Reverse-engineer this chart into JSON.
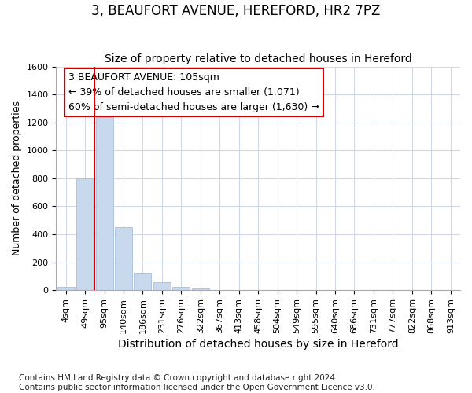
{
  "title": "3, BEAUFORT AVENUE, HEREFORD, HR2 7PZ",
  "subtitle": "Size of property relative to detached houses in Hereford",
  "xlabel": "Distribution of detached houses by size in Hereford",
  "ylabel": "Number of detached properties",
  "footnote": "Contains HM Land Registry data © Crown copyright and database right 2024.\nContains public sector information licensed under the Open Government Licence v3.0.",
  "bar_labels": [
    "4sqm",
    "49sqm",
    "95sqm",
    "140sqm",
    "186sqm",
    "231sqm",
    "276sqm",
    "322sqm",
    "367sqm",
    "413sqm",
    "458sqm",
    "504sqm",
    "549sqm",
    "595sqm",
    "640sqm",
    "686sqm",
    "731sqm",
    "777sqm",
    "822sqm",
    "868sqm",
    "913sqm"
  ],
  "bar_values": [
    25,
    800,
    1240,
    450,
    125,
    60,
    25,
    15,
    0,
    0,
    0,
    0,
    0,
    0,
    0,
    0,
    0,
    0,
    0,
    0,
    0
  ],
  "bar_color": "#c8d8ed",
  "bar_edge_color": "#a8bedd",
  "vline_x": 1.5,
  "vline_color": "#cc0000",
  "annotation_text": "3 BEAUFORT AVENUE: 105sqm\n← 39% of detached houses are smaller (1,071)\n60% of semi-detached houses are larger (1,630) →",
  "annotation_box_facecolor": "#ffffff",
  "annotation_box_edgecolor": "#cc0000",
  "ylim": [
    0,
    1600
  ],
  "yticks": [
    0,
    200,
    400,
    600,
    800,
    1000,
    1200,
    1400,
    1600
  ],
  "grid_color": "#d0d8e8",
  "plot_bg_color": "#ffffff",
  "fig_bg_color": "#ffffff",
  "title_fontsize": 12,
  "subtitle_fontsize": 10,
  "ylabel_fontsize": 9,
  "xlabel_fontsize": 10,
  "tick_fontsize": 8,
  "footnote_fontsize": 7.5,
  "annot_fontsize": 9
}
